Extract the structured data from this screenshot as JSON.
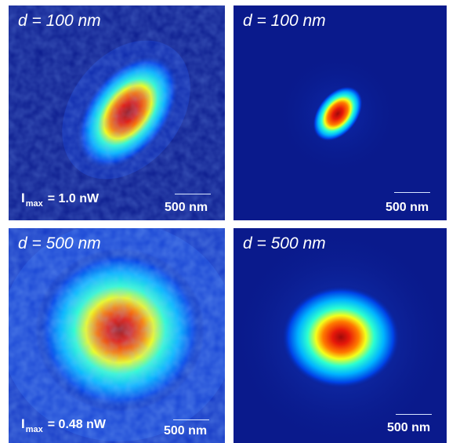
{
  "panels": [
    {
      "title": "d = 100 nm",
      "imax_symbol": "I",
      "imax_subscript": "max",
      "imax_value": "= 1.0 nW",
      "scale_label": "500 nm"
    },
    {
      "title": "d = 100 nm",
      "scale_label": "500 nm"
    },
    {
      "title": "d = 500 nm",
      "imax_symbol": "I",
      "imax_subscript": "max",
      "imax_value": "= 0.48 nW",
      "scale_label": "500 nm"
    },
    {
      "title": "d = 500 nm",
      "scale_label": "500 nm"
    }
  ],
  "colors": {
    "background": "#0a1a8c",
    "colormap": [
      "#0a1a8c",
      "#0042e6",
      "#00b4ff",
      "#2cffd0",
      "#f4ff1a",
      "#ff7a00",
      "#e6180a",
      "#a00a0a"
    ]
  }
}
